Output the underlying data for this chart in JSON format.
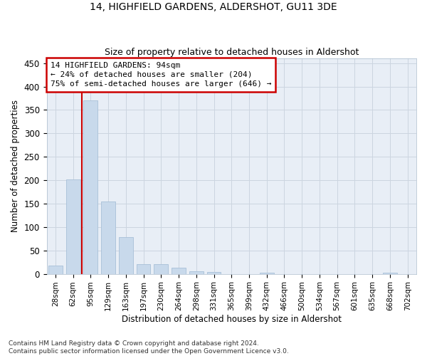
{
  "title": "14, HIGHFIELD GARDENS, ALDERSHOT, GU11 3DE",
  "subtitle": "Size of property relative to detached houses in Aldershot",
  "xlabel": "Distribution of detached houses by size in Aldershot",
  "ylabel": "Number of detached properties",
  "categories": [
    "28sqm",
    "62sqm",
    "95sqm",
    "129sqm",
    "163sqm",
    "197sqm",
    "230sqm",
    "264sqm",
    "298sqm",
    "331sqm",
    "365sqm",
    "399sqm",
    "432sqm",
    "466sqm",
    "500sqm",
    "534sqm",
    "567sqm",
    "601sqm",
    "635sqm",
    "668sqm",
    "702sqm"
  ],
  "values": [
    18,
    202,
    370,
    155,
    78,
    21,
    21,
    13,
    6,
    4,
    0,
    0,
    3,
    0,
    0,
    0,
    0,
    0,
    0,
    3,
    0
  ],
  "bar_color": "#c8d9eb",
  "bar_edge_color": "#a8c0d8",
  "grid_color": "#ccd5e0",
  "background_color": "#e8eef6",
  "annotation_title": "14 HIGHFIELD GARDENS: 94sqm",
  "annotation_line1": "← 24% of detached houses are smaller (204)",
  "annotation_line2": "75% of semi-detached houses are larger (646) →",
  "annotation_box_facecolor": "#ffffff",
  "annotation_box_edgecolor": "#cc0000",
  "vline_color": "#cc0000",
  "footer_line1": "Contains HM Land Registry data © Crown copyright and database right 2024.",
  "footer_line2": "Contains public sector information licensed under the Open Government Licence v3.0.",
  "ylim": [
    0,
    460
  ],
  "yticks": [
    0,
    50,
    100,
    150,
    200,
    250,
    300,
    350,
    400,
    450
  ],
  "vline_bar_index": 2
}
